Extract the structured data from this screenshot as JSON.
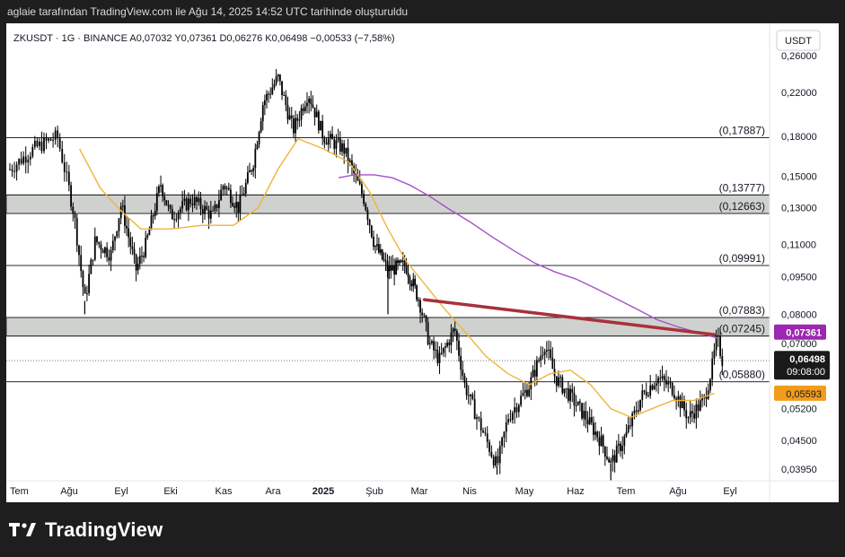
{
  "header_text": "aglaie tarafından TradingView.com ile Ağu 14, 2025 14:52 UTC tarihinde oluşturuldu",
  "brand": "TradingView",
  "chart_data": {
    "type": "candlestick",
    "symbol_line": "ZKUSDT · 1G · BINANCE  A0,07032  Y0,07361  D0,06276  K0,06498  −0,00533 (−7,58%)",
    "currency": "USDT",
    "y_ticks": [
      "0,26000",
      "0,22000",
      "0,18000",
      "0,15000",
      "0,13000",
      "0,11000",
      "0,09500",
      "0,08000",
      "0,07000",
      "0,05200",
      "0,04500",
      "0,03950"
    ],
    "y_tick_values": [
      0.26,
      0.22,
      0.18,
      0.15,
      0.13,
      0.11,
      0.095,
      0.08,
      0.07,
      0.052,
      0.045,
      0.0395
    ],
    "x_ticks": [
      "Tem",
      "Ağu",
      "Eyl",
      "Eki",
      "Kas",
      "Ara",
      "2025",
      "Şub",
      "Mar",
      "Nis",
      "May",
      "Haz",
      "Tem",
      "Ağu",
      "Eyl"
    ],
    "x_tick_months": [
      0,
      1,
      2,
      3,
      4,
      5,
      6,
      7,
      8,
      9,
      10,
      11,
      12,
      13,
      14
    ],
    "horizontal_levels": [
      {
        "label": "(0,17887)",
        "value": 0.17887
      },
      {
        "label": "(0,13777)",
        "value": 0.13777
      },
      {
        "label": "(0,12663)",
        "value": 0.12663
      },
      {
        "label": "(0,09991)",
        "value": 0.09991
      },
      {
        "label": "(0,07883)",
        "value": 0.07883
      },
      {
        "label": "(0,07245)",
        "value": 0.07245
      },
      {
        "label": "(0,05880)",
        "value": 0.0588
      }
    ],
    "zones": [
      {
        "from": 0.12663,
        "to": 0.13777
      },
      {
        "from": 0.07245,
        "to": 0.07883
      }
    ],
    "trendline": {
      "start": [
        8.1,
        0.0855
      ],
      "end": [
        13.7,
        0.0729
      ],
      "color": "#a8313a"
    },
    "last_price": {
      "label": "0,06498",
      "countdown": "09:08:00",
      "value": 0.06498
    },
    "high_badge": {
      "label": "0,07361",
      "value": 0.07361,
      "color": "#9c27b0"
    },
    "ma_badge": {
      "label": "0,05593",
      "value": 0.05593,
      "color": "#f29d1a"
    },
    "ma_short_color": "#f0b43c",
    "ma_long_color": "#a64fc7",
    "price_path": [
      [
        0.0,
        0.155
      ],
      [
        0.4,
        0.17
      ],
      [
        0.8,
        0.18
      ],
      [
        1.1,
        0.125
      ],
      [
        1.3,
        0.085
      ],
      [
        1.5,
        0.112
      ],
      [
        1.8,
        0.105
      ],
      [
        2.0,
        0.132
      ],
      [
        2.3,
        0.098
      ],
      [
        2.5,
        0.11
      ],
      [
        2.8,
        0.145
      ],
      [
        3.0,
        0.125
      ],
      [
        3.4,
        0.135
      ],
      [
        3.8,
        0.125
      ],
      [
        4.0,
        0.145
      ],
      [
        4.3,
        0.13
      ],
      [
        4.6,
        0.16
      ],
      [
        4.8,
        0.21
      ],
      [
        5.1,
        0.235
      ],
      [
        5.4,
        0.185
      ],
      [
        5.7,
        0.22
      ],
      [
        6.0,
        0.18
      ],
      [
        6.4,
        0.17
      ],
      [
        6.8,
        0.135
      ],
      [
        7.0,
        0.11
      ],
      [
        7.3,
        0.098
      ],
      [
        7.7,
        0.1
      ],
      [
        8.0,
        0.085
      ],
      [
        8.2,
        0.07
      ],
      [
        8.4,
        0.065
      ],
      [
        8.7,
        0.075
      ],
      [
        8.9,
        0.058
      ],
      [
        9.2,
        0.048
      ],
      [
        9.5,
        0.04
      ],
      [
        9.7,
        0.05
      ],
      [
        10.1,
        0.058
      ],
      [
        10.4,
        0.07
      ],
      [
        10.6,
        0.06
      ],
      [
        10.9,
        0.055
      ],
      [
        11.2,
        0.05
      ],
      [
        11.5,
        0.045
      ],
      [
        11.7,
        0.0405
      ],
      [
        12.0,
        0.046
      ],
      [
        12.3,
        0.055
      ],
      [
        12.6,
        0.06
      ],
      [
        12.9,
        0.057
      ],
      [
        13.2,
        0.05
      ],
      [
        13.5,
        0.054
      ],
      [
        13.65,
        0.0625
      ],
      [
        13.75,
        0.072
      ],
      [
        13.85,
        0.065
      ]
    ],
    "ma_short_path": [
      [
        1.2,
        0.17
      ],
      [
        1.6,
        0.142
      ],
      [
        2.0,
        0.128
      ],
      [
        2.4,
        0.118
      ],
      [
        3.0,
        0.118
      ],
      [
        3.6,
        0.12
      ],
      [
        4.2,
        0.12
      ],
      [
        4.7,
        0.13
      ],
      [
        5.1,
        0.155
      ],
      [
        5.5,
        0.178
      ],
      [
        6.0,
        0.17
      ],
      [
        6.5,
        0.16
      ],
      [
        6.9,
        0.14
      ],
      [
        7.3,
        0.118
      ],
      [
        7.7,
        0.102
      ],
      [
        8.1,
        0.092
      ],
      [
        8.5,
        0.082
      ],
      [
        8.9,
        0.074
      ],
      [
        9.3,
        0.066
      ],
      [
        9.7,
        0.061
      ],
      [
        10.1,
        0.058
      ],
      [
        10.5,
        0.061
      ],
      [
        10.9,
        0.062
      ],
      [
        11.3,
        0.058
      ],
      [
        11.7,
        0.052
      ],
      [
        12.1,
        0.05
      ],
      [
        12.5,
        0.052
      ],
      [
        12.9,
        0.054
      ],
      [
        13.3,
        0.054
      ],
      [
        13.7,
        0.0558
      ]
    ],
    "ma_long_path": [
      [
        6.3,
        0.149
      ],
      [
        6.6,
        0.151
      ],
      [
        7.0,
        0.151
      ],
      [
        7.4,
        0.149
      ],
      [
        7.8,
        0.144
      ],
      [
        8.2,
        0.137
      ],
      [
        8.6,
        0.129
      ],
      [
        9.0,
        0.122
      ],
      [
        9.4,
        0.114
      ],
      [
        9.8,
        0.107
      ],
      [
        10.2,
        0.101
      ],
      [
        10.6,
        0.097
      ],
      [
        11.0,
        0.094
      ],
      [
        11.4,
        0.09
      ],
      [
        11.8,
        0.086
      ],
      [
        12.2,
        0.082
      ],
      [
        12.6,
        0.078
      ],
      [
        13.0,
        0.0755
      ],
      [
        13.4,
        0.0735
      ],
      [
        13.75,
        0.0718
      ]
    ],
    "low_wicks": [
      [
        1.3,
        0.08
      ],
      [
        7.3,
        0.08
      ],
      [
        9.5,
        0.0385
      ],
      [
        11.7,
        0.0375
      ]
    ]
  }
}
